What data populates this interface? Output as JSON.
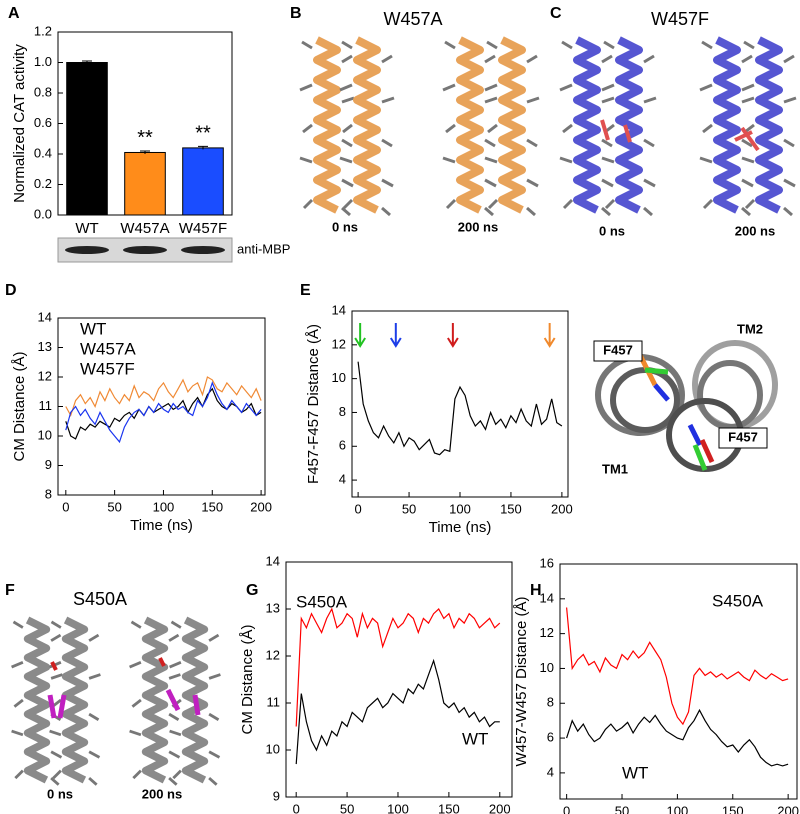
{
  "chart_data": [
    {
      "type": "bar",
      "panel": "A",
      "ylabel": "Normalized CAT activity",
      "categories": [
        "WT",
        "W457A",
        "W457F"
      ],
      "values": [
        1.0,
        0.41,
        0.44
      ],
      "errors": [
        0.01,
        0.01,
        0.01
      ],
      "colors": [
        "#000000",
        "#ff8c1a",
        "#1a4dff"
      ],
      "significance": [
        null,
        "**",
        "**"
      ],
      "ylim": [
        0,
        1.2
      ],
      "yticks": [
        {
          "value": 0,
          "label": "0.0"
        },
        {
          "value": 0.2,
          "label": "0.2"
        },
        {
          "value": 0.4,
          "label": "0.4"
        },
        {
          "value": 0.6,
          "label": "0.6"
        },
        {
          "value": 0.8,
          "label": "0.8"
        },
        {
          "value": 1,
          "label": "1.0"
        },
        {
          "value": 1.2,
          "label": "1.2"
        }
      ],
      "blot_label": "anti-MBP"
    },
    {
      "type": "line",
      "panel": "D",
      "xlabel": "Time (ns)",
      "ylabel": "CM Distance (Å)",
      "legend": "upper-left",
      "xlim": [
        -8,
        204
      ],
      "xticks": [
        0,
        50,
        100,
        150,
        200
      ],
      "ylim": [
        8,
        14
      ],
      "yticks": [
        8,
        9,
        10,
        11,
        12,
        13,
        14
      ],
      "x": [
        0,
        5,
        10,
        15,
        20,
        25,
        30,
        35,
        40,
        45,
        50,
        55,
        60,
        65,
        70,
        75,
        80,
        85,
        90,
        95,
        100,
        105,
        110,
        115,
        120,
        125,
        130,
        135,
        140,
        145,
        150,
        155,
        160,
        165,
        170,
        175,
        180,
        185,
        190,
        195,
        200
      ],
      "series": [
        {
          "name": "WT",
          "color": "#000000",
          "values": [
            10.5,
            10.0,
            9.9,
            10.3,
            10.2,
            10.4,
            10.3,
            10.5,
            10.4,
            10.3,
            10.6,
            10.5,
            10.7,
            10.8,
            10.6,
            10.9,
            10.7,
            11.0,
            10.8,
            10.9,
            11.0,
            11.1,
            10.9,
            11.0,
            11.2,
            10.8,
            11.1,
            11.3,
            11.0,
            11.4,
            11.6,
            11.2,
            11.0,
            10.9,
            11.1,
            11.0,
            10.8,
            10.9,
            11.1,
            10.7,
            10.8
          ]
        },
        {
          "name": "W457A",
          "color": "#f08a35",
          "values": [
            11.0,
            10.7,
            11.2,
            11.4,
            11.1,
            11.3,
            11.0,
            11.5,
            11.2,
            11.6,
            11.3,
            11.1,
            11.4,
            11.2,
            11.7,
            11.3,
            11.5,
            11.4,
            11.2,
            11.6,
            11.8,
            11.5,
            11.3,
            11.6,
            11.9,
            11.5,
            11.7,
            11.8,
            11.4,
            12.0,
            11.9,
            11.6,
            11.5,
            11.8,
            11.6,
            11.4,
            11.7,
            11.5,
            11.3,
            11.6,
            11.2
          ]
        },
        {
          "name": "W457F",
          "color": "#1a35f0",
          "values": [
            10.2,
            10.8,
            11.0,
            10.7,
            10.9,
            10.6,
            10.4,
            10.8,
            10.5,
            10.2,
            10.0,
            9.8,
            10.3,
            10.6,
            10.8,
            10.9,
            10.7,
            11.0,
            10.8,
            11.1,
            10.9,
            10.8,
            11.1,
            10.9,
            11.0,
            10.8,
            10.7,
            11.2,
            11.0,
            11.3,
            11.8,
            11.4,
            11.1,
            10.9,
            11.2,
            11.0,
            10.8,
            11.1,
            10.9,
            10.7,
            10.9
          ]
        }
      ]
    },
    {
      "type": "line",
      "panel": "E",
      "xlabel": "Time (ns)",
      "ylabel": "F457-F457 Distance (Å)",
      "xlim": [
        -6,
        206
      ],
      "xticks": [
        0,
        50,
        100,
        150,
        200
      ],
      "ylim": [
        3,
        14
      ],
      "yticks": [
        4,
        6,
        8,
        10,
        12,
        14
      ],
      "x": [
        0,
        5,
        10,
        15,
        20,
        25,
        30,
        35,
        40,
        45,
        50,
        55,
        60,
        65,
        70,
        75,
        80,
        85,
        90,
        95,
        100,
        105,
        110,
        115,
        120,
        125,
        130,
        135,
        140,
        145,
        150,
        155,
        160,
        165,
        170,
        175,
        180,
        185,
        190,
        195,
        200
      ],
      "series": [
        {
          "color": "#000000",
          "values": [
            11.0,
            8.5,
            7.5,
            6.8,
            6.5,
            7.2,
            6.6,
            6.2,
            6.8,
            6.0,
            6.5,
            6.3,
            5.8,
            6.1,
            6.4,
            5.6,
            5.5,
            5.8,
            5.7,
            8.8,
            9.5,
            9.0,
            7.8,
            7.2,
            7.5,
            7.0,
            8.0,
            7.3,
            7.6,
            7.1,
            7.8,
            7.4,
            8.2,
            7.5,
            7.2,
            8.5,
            7.3,
            7.6,
            8.8,
            7.4,
            7.2
          ]
        }
      ],
      "arrows": [
        {
          "x": 2,
          "color": "#22c222"
        },
        {
          "x": 37,
          "color": "#1d3ee8"
        },
        {
          "x": 93,
          "color": "#d01c1c"
        },
        {
          "x": 188,
          "color": "#f0892c"
        }
      ]
    },
    {
      "type": "line",
      "panel": "G",
      "xlabel": "Time (ns)",
      "ylabel": "CM Distance (Å)",
      "legend": "inline",
      "xlim": [
        -10,
        212
      ],
      "xticks": [
        0,
        50,
        100,
        150,
        200
      ],
      "ylim": [
        9,
        14
      ],
      "yticks": [
        9,
        10,
        11,
        12,
        13,
        14
      ],
      "x": [
        0,
        5,
        10,
        15,
        20,
        25,
        30,
        35,
        40,
        45,
        50,
        55,
        60,
        65,
        70,
        75,
        80,
        85,
        90,
        95,
        100,
        105,
        110,
        115,
        120,
        125,
        130,
        135,
        140,
        145,
        150,
        155,
        160,
        165,
        170,
        175,
        180,
        185,
        190,
        195,
        200
      ],
      "series": [
        {
          "name": "S450A",
          "color": "#ff0000",
          "values": [
            10.5,
            12.8,
            12.6,
            12.9,
            12.7,
            12.5,
            12.8,
            13.0,
            12.6,
            12.7,
            12.9,
            12.8,
            12.4,
            12.9,
            12.6,
            12.8,
            12.7,
            12.2,
            12.5,
            12.8,
            12.6,
            12.7,
            12.9,
            12.8,
            12.5,
            12.8,
            12.7,
            12.9,
            13.0,
            12.8,
            12.9,
            12.6,
            12.8,
            12.7,
            12.9,
            12.8,
            12.6,
            12.7,
            12.8,
            12.6,
            12.7
          ]
        },
        {
          "name": "WT",
          "color": "#000000",
          "values": [
            9.7,
            11.2,
            10.6,
            10.2,
            10.0,
            10.3,
            10.1,
            10.4,
            10.3,
            10.6,
            10.5,
            10.8,
            10.7,
            10.6,
            10.9,
            11.0,
            11.1,
            10.9,
            11.0,
            11.2,
            11.1,
            11.0,
            11.3,
            11.2,
            11.4,
            11.3,
            11.6,
            11.9,
            11.5,
            11.0,
            10.9,
            11.0,
            10.8,
            10.9,
            10.7,
            10.8,
            10.6,
            10.7,
            10.5,
            10.6,
            10.6
          ]
        }
      ]
    },
    {
      "type": "line",
      "panel": "H",
      "xlabel": "Time (ns)",
      "ylabel": "W457-W457 Distance (Å)",
      "legend": "inline",
      "xlim": [
        -6,
        208
      ],
      "xticks": [
        0,
        50,
        100,
        150,
        200
      ],
      "ylim": [
        2.5,
        16
      ],
      "yticks": [
        4,
        6,
        8,
        10,
        12,
        14,
        16
      ],
      "x": [
        0,
        5,
        10,
        15,
        20,
        25,
        30,
        35,
        40,
        45,
        50,
        55,
        60,
        65,
        70,
        75,
        80,
        85,
        90,
        95,
        100,
        105,
        110,
        115,
        120,
        125,
        130,
        135,
        140,
        145,
        150,
        155,
        160,
        165,
        170,
        175,
        180,
        185,
        190,
        195,
        200
      ],
      "series": [
        {
          "name": "S450A",
          "color": "#ff0000",
          "values": [
            13.5,
            10.0,
            10.5,
            10.8,
            10.2,
            10.4,
            9.8,
            10.6,
            10.2,
            10.0,
            10.8,
            10.5,
            11.0,
            10.6,
            10.9,
            11.5,
            11.0,
            10.5,
            9.5,
            8.0,
            7.2,
            6.8,
            7.5,
            9.6,
            10.0,
            9.6,
            9.8,
            9.5,
            9.7,
            9.4,
            9.6,
            9.8,
            9.5,
            9.3,
            9.9,
            9.6,
            9.4,
            9.7,
            9.5,
            9.3,
            9.4
          ]
        },
        {
          "name": "WT",
          "color": "#000000",
          "values": [
            6.0,
            7.0,
            6.4,
            6.8,
            6.2,
            5.8,
            6.0,
            6.5,
            6.8,
            6.4,
            6.6,
            6.9,
            6.3,
            6.8,
            7.2,
            6.9,
            7.3,
            6.8,
            6.4,
            6.2,
            6.0,
            5.9,
            6.6,
            7.0,
            7.6,
            7.0,
            6.5,
            6.2,
            5.8,
            5.5,
            5.6,
            5.2,
            5.6,
            5.9,
            5.5,
            4.9,
            4.6,
            4.4,
            4.5,
            4.4,
            4.5
          ]
        }
      ]
    }
  ],
  "images": [
    {
      "panel": "B",
      "title": "W457A",
      "labels": [
        "0 ns",
        "200 ns"
      ]
    },
    {
      "panel": "C",
      "title": "W457F",
      "labels": [
        "0 ns",
        "200 ns"
      ]
    },
    {
      "panel": "F",
      "title": "S450A",
      "labels": [
        "0 ns",
        "200 ns"
      ]
    },
    {
      "labels": [
        "F457",
        "F457",
        "TM1",
        "TM2"
      ]
    }
  ]
}
